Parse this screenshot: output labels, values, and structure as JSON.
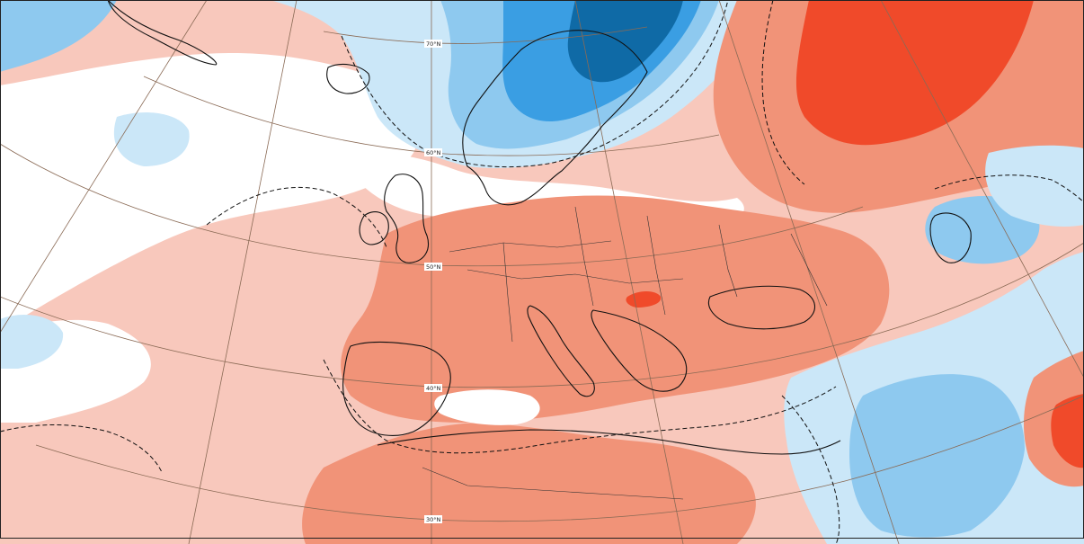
{
  "map": {
    "projection": "polar-stereographic",
    "latitude_labels": [
      "70°N",
      "60°N",
      "50°N",
      "40°N",
      "30°N"
    ],
    "shading": {
      "strong_warm": "#f04a2a",
      "warm": "#f19378",
      "mild_warm": "#f8c8bc",
      "neutral": "#ffffff",
      "mild_cold": "#cbe7f8",
      "cold": "#8ec9ef",
      "strong_cold": "#3a9ee3",
      "very_strong_cold": "#0f6aa6"
    },
    "zero_contour_style": "dashed",
    "gridline_color": "#8a6a55",
    "coastline_color": "#111111"
  }
}
